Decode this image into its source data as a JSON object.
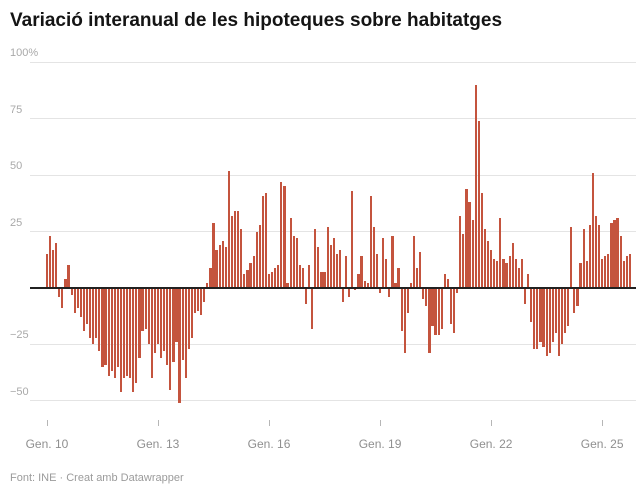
{
  "header": {
    "title": "Variació interanual de les hipoteques sobre habitatges"
  },
  "footer": {
    "text": "Font: INE · Creat amb Datawrapper"
  },
  "chart_data": {
    "type": "bar",
    "title": "Variació interanual de les hipoteques sobre habitatges",
    "unit": "%",
    "bar_color": "#c4543e",
    "grid": true,
    "legend": "none",
    "x_start_label": "Gen. 10",
    "x_ticks": [
      {
        "label": "Gen. 10",
        "month_index": 0
      },
      {
        "label": "Gen. 13",
        "month_index": 36
      },
      {
        "label": "Gen. 16",
        "month_index": 72
      },
      {
        "label": "Gen. 19",
        "month_index": 108
      },
      {
        "label": "Gen. 22",
        "month_index": 144
      },
      {
        "label": "Gen. 25",
        "month_index": 180
      }
    ],
    "y_ticks": [
      {
        "value": 100,
        "label": "100%"
      },
      {
        "value": 75,
        "label": "75"
      },
      {
        "value": 50,
        "label": "50"
      },
      {
        "value": 25,
        "label": "25"
      },
      {
        "value": -25,
        "label": "−25"
      },
      {
        "value": -50,
        "label": "−50"
      }
    ],
    "ylim": [
      -55,
      104
    ],
    "n_months": 190,
    "values": [
      15,
      23,
      17,
      20,
      -4,
      -9,
      4,
      10,
      -3,
      -11,
      -9,
      -13,
      -19,
      -16,
      -22,
      -25,
      -22,
      -28,
      -35,
      -34,
      -39,
      -37,
      -40,
      -35,
      -46,
      -40,
      -39,
      -40,
      -46,
      -42,
      -31,
      -19,
      -18,
      -25,
      -40,
      -29,
      -25,
      -31,
      -28,
      -34,
      -45,
      -33,
      -24,
      -51,
      -32,
      -40,
      -27,
      -22,
      -11,
      -10,
      -12,
      -6,
      2,
      9,
      29,
      17,
      19,
      21,
      18,
      52,
      32,
      34,
      34,
      26,
      6,
      8,
      11,
      14,
      25,
      28,
      41,
      42,
      6,
      7,
      9,
      10,
      47,
      45,
      2,
      31,
      23,
      22,
      10,
      9,
      -7,
      10,
      -18,
      26,
      18,
      7,
      7,
      27,
      19,
      22,
      15,
      17,
      -6,
      14,
      -4,
      43,
      -1,
      6,
      14,
      3,
      2,
      41,
      27,
      15,
      -2,
      22,
      13,
      -4,
      23,
      2,
      9,
      -19,
      -29,
      -11,
      2,
      23,
      9,
      16,
      -5,
      -8,
      -29,
      -17,
      -21,
      -21,
      -18,
      6,
      4,
      -16,
      -20,
      -2,
      32,
      24,
      44,
      38,
      30,
      90,
      74,
      42,
      26,
      21,
      17,
      13,
      12,
      31,
      13,
      11,
      14,
      20,
      13,
      9,
      13,
      -7,
      6,
      -15,
      -27,
      -27,
      -24,
      -26,
      -30,
      -29,
      -24,
      -20,
      -30,
      -25,
      -20,
      -17,
      27,
      -11,
      -8,
      11,
      26,
      12,
      28,
      51,
      32,
      28,
      13,
      14,
      15,
      29,
      30,
      31,
      23,
      12,
      14,
      15
    ]
  }
}
